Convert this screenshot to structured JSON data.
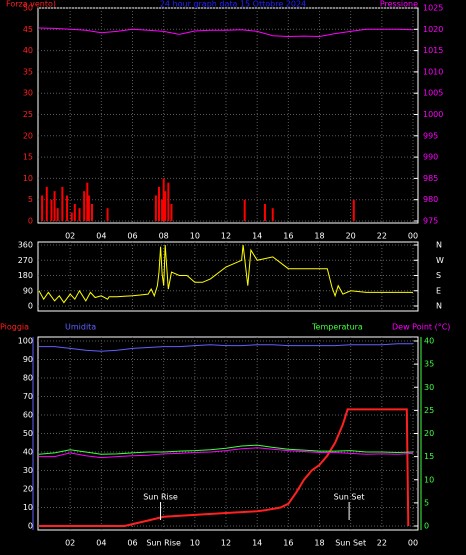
{
  "chart_data": [
    {
      "type": "bar",
      "title": "24 hour graph data  15 Ottobre 2024",
      "ylabel": "Forza vento)",
      "y2label": "Pressione",
      "xlim": [
        0,
        24
      ],
      "xticks": [
        {
          "value": 2,
          "label": "02"
        },
        {
          "value": 4,
          "label": "04"
        },
        {
          "value": 6,
          "label": "06"
        },
        {
          "value": 8,
          "label": "08"
        },
        10,
        12,
        14,
        16,
        18,
        20,
        22,
        {
          "value": 24,
          "label": "00"
        }
      ],
      "ylim": [
        0,
        50
      ],
      "yticks": [
        0,
        5,
        10,
        15,
        20,
        25,
        30,
        35,
        40,
        45,
        50
      ],
      "ytick_color": "#ff2020",
      "y2lim": [
        975,
        1025
      ],
      "y2ticks": [
        975,
        980,
        985,
        990,
        995,
        1000,
        1005,
        1010,
        1015,
        1020,
        1025
      ],
      "y2tick_color": "#ff00ff",
      "grid": true,
      "series": [
        {
          "type": "bar",
          "color": "#ff0000",
          "x": [
            0.2,
            0.5,
            0.8,
            1,
            1.2,
            1.5,
            1.8,
            2.1,
            2.3,
            2.6,
            2.9,
            3.1,
            3.2,
            3.4,
            4.4,
            7.5,
            7.7,
            7.9,
            8,
            8.1,
            8.3,
            8.5,
            13.2,
            14.5,
            15,
            20.2
          ],
          "values": [
            6,
            8,
            5,
            7,
            3,
            8,
            6,
            2,
            4,
            3,
            7,
            9,
            6,
            4,
            3,
            6,
            8,
            5,
            10,
            7,
            9,
            4,
            5,
            4,
            3,
            5
          ]
        },
        {
          "type": "line",
          "axis": "y2",
          "color": "#ff00ff",
          "x": [
            0,
            1,
            2,
            3,
            4,
            5,
            6,
            7,
            8,
            9,
            10,
            11,
            12,
            13,
            14,
            15,
            16,
            17,
            18,
            19,
            20,
            21,
            22,
            23,
            24
          ],
          "values": [
            1020.3,
            1020.2,
            1020,
            1019.8,
            1019.2,
            1019.5,
            1020,
            1019.8,
            1019.5,
            1018.8,
            1019.6,
            1019.8,
            1019.8,
            1019.9,
            1019.5,
            1018.5,
            1018.3,
            1018.4,
            1018.3,
            1019,
            1019.5,
            1020,
            1020,
            1020,
            1019.9
          ]
        }
      ]
    },
    {
      "type": "line",
      "xlim": [
        0,
        24
      ],
      "xticks": [
        2,
        4,
        6,
        8,
        10,
        12,
        14,
        16,
        18,
        20,
        22,
        24
      ],
      "ylim": [
        0,
        360
      ],
      "yticks": [
        0,
        90,
        180,
        270,
        360
      ],
      "ytick_color": "#ffffff",
      "y2lim": [
        0,
        360
      ],
      "y2ticks": [
        {
          "value": 360,
          "label": "N"
        },
        {
          "value": 270,
          "label": "W"
        },
        {
          "value": 180,
          "label": "S"
        },
        {
          "value": 90,
          "label": "E"
        },
        {
          "value": 0,
          "label": "N"
        }
      ],
      "y2tick_color": "#ffffff",
      "grid": true,
      "series": [
        {
          "type": "line",
          "color": "#ffff00",
          "x": [
            0,
            0.3,
            0.6,
            1,
            1.3,
            1.6,
            2,
            2.3,
            2.6,
            3,
            3.3,
            3.6,
            4,
            4.4,
            4.5,
            5,
            6,
            6.5,
            7,
            7.2,
            7.4,
            7.6,
            7.7,
            7.8,
            7.9,
            8,
            8.1,
            8.3,
            8.5,
            9,
            9.5,
            10,
            10.5,
            11,
            12,
            13,
            13.1,
            13.4,
            13.6,
            14,
            15,
            16,
            17,
            18,
            18.5,
            18.8,
            19,
            19.2,
            19.5,
            20,
            21,
            22,
            23,
            24
          ],
          "values": [
            90,
            40,
            80,
            30,
            60,
            20,
            70,
            40,
            90,
            30,
            80,
            50,
            60,
            40,
            55,
            55,
            60,
            65,
            70,
            100,
            60,
            120,
            200,
            350,
            190,
            120,
            360,
            100,
            200,
            180,
            180,
            140,
            140,
            160,
            230,
            270,
            360,
            120,
            330,
            270,
            290,
            220,
            220,
            220,
            220,
            110,
            60,
            120,
            70,
            90,
            80,
            80,
            80,
            80
          ]
        }
      ]
    },
    {
      "type": "line",
      "xlim": [
        0,
        24
      ],
      "xticks": [
        {
          "value": 2,
          "label": "02"
        },
        {
          "value": 4,
          "label": "04"
        },
        {
          "value": 6,
          "label": "06"
        },
        {
          "value": 8,
          "label": "Sun Rise"
        },
        10,
        12,
        14,
        16,
        18,
        {
          "value": 20,
          "label": "Sun Set"
        },
        22,
        {
          "value": 24,
          "label": "00"
        }
      ],
      "ylim": [
        0,
        100
      ],
      "yticks": [
        0,
        10,
        20,
        30,
        40,
        50,
        60,
        70,
        80,
        90,
        100
      ],
      "ytick_color": "#ffffff",
      "y2lim": [
        0,
        40
      ],
      "y2ticks": [
        0,
        5,
        10,
        15,
        20,
        25,
        30,
        35,
        40
      ],
      "y2tick_color": "#40ff40",
      "grid": true,
      "annotations": [
        {
          "text": "Sun Rise",
          "x": 7.8
        },
        {
          "text": "Sun Set",
          "x": 19.9
        }
      ],
      "series": [
        {
          "name": "Pioggia",
          "type": "line",
          "color": "#ff2020",
          "x": [
            0,
            5.5,
            6,
            7,
            8,
            10,
            12,
            13,
            14,
            14.5,
            15.5,
            16,
            16.5,
            17,
            17.5,
            18,
            18.5,
            19,
            19.5,
            19.8,
            23.6,
            23.7
          ],
          "values": [
            0,
            0,
            1,
            3,
            5,
            6,
            7,
            7.5,
            8,
            8.5,
            10,
            12,
            18,
            25,
            30,
            33,
            38,
            45,
            55,
            63,
            63,
            0
          ]
        },
        {
          "name": "Umidita",
          "type": "line",
          "color": "#6060ff",
          "x": [
            0,
            1,
            2,
            3,
            4,
            5,
            6,
            7,
            8,
            9,
            10,
            11,
            12,
            13,
            14,
            15,
            16,
            17,
            18,
            19,
            20,
            21,
            22,
            23,
            24
          ],
          "values": [
            97,
            97,
            96,
            95,
            94.5,
            95,
            96,
            96.5,
            97,
            97,
            97.5,
            98,
            97.5,
            97.5,
            98,
            98,
            97.5,
            97.5,
            97.5,
            97.5,
            98,
            98,
            98,
            98.5,
            98.5
          ]
        },
        {
          "name": "Temperatura",
          "type": "line",
          "axis": "y2",
          "color": "#40ff40",
          "x": [
            0,
            1,
            2,
            3,
            4,
            5,
            6,
            7,
            8,
            9,
            10,
            11,
            12,
            13,
            14,
            15,
            16,
            17,
            18,
            19,
            20,
            21,
            22,
            23,
            24
          ],
          "values": [
            15.5,
            15.8,
            16.5,
            16,
            15.5,
            15.6,
            15.8,
            16,
            16,
            16.2,
            16.3,
            16.5,
            16.8,
            17.3,
            17.5,
            17,
            16.6,
            16.4,
            16.2,
            16.2,
            16.3,
            16,
            16,
            15.9,
            16
          ]
        },
        {
          "name": "Dew Point (°C)",
          "type": "line",
          "axis": "y2",
          "color": "#ff00ff",
          "x": [
            0,
            1,
            2,
            3,
            4,
            5,
            6,
            7,
            8,
            9,
            10,
            11,
            12,
            13,
            14,
            15,
            16,
            17,
            18,
            19,
            20,
            21,
            22,
            23,
            24
          ],
          "values": [
            15,
            15,
            15.8,
            15.2,
            14.8,
            15,
            15.2,
            15.3,
            15.6,
            15.7,
            15.9,
            16,
            16.3,
            16.7,
            16.9,
            16.6,
            16.3,
            16.1,
            15.9,
            15.9,
            15.7,
            15.5,
            15.6,
            15.5,
            15.7
          ]
        }
      ]
    }
  ]
}
